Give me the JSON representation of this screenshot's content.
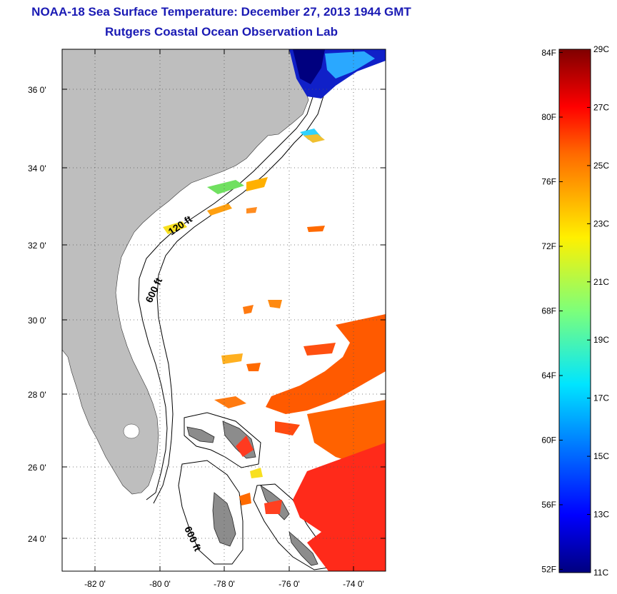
{
  "title": {
    "line1": "NOAA-18 Sea Surface Temperature:  December 27, 2013 1944 GMT",
    "line2": "Rutgers Coastal Ocean Observation Lab"
  },
  "map": {
    "lat_labels": [
      "36 0'",
      "34 0'",
      "32 0'",
      "30 0'",
      "28 0'",
      "26 0'",
      "24 0'"
    ],
    "lon_labels": [
      "-82 0'",
      "-80 0'",
      "-78 0'",
      "-76 0'",
      "-74 0'"
    ],
    "contours": [
      "120 ft",
      "600 ft",
      "600 ft"
    ],
    "land_color": "#bebebe"
  },
  "colorbar": {
    "fahrenheit": [
      "84F",
      "80F",
      "76F",
      "72F",
      "68F",
      "64F",
      "60F",
      "56F",
      "52F"
    ],
    "celsius": [
      "29C",
      "27C",
      "25C",
      "23C",
      "21C",
      "19C",
      "17C",
      "15C",
      "13C",
      "11C"
    ],
    "range_c": [
      11,
      29
    ],
    "range_f": [
      52,
      84
    ]
  }
}
